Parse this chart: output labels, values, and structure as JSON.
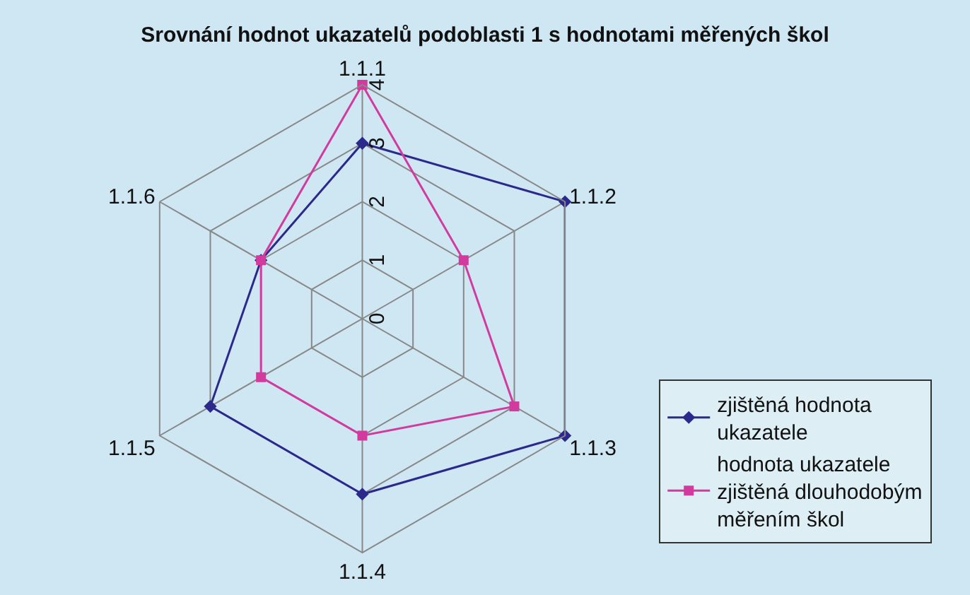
{
  "chart_data": {
    "type": "radar",
    "title": "Srovnání hodnot ukazatelů podoblasti 1 s hodnotami měřených škol",
    "categories": [
      "1.1.1",
      "1.1.2",
      "1.1.3",
      "1.1.4",
      "1.1.5",
      "1.1.6"
    ],
    "series": [
      {
        "name": "zjištěná hodnota ukazatele",
        "color": "#2b2a8c",
        "values": [
          3,
          4,
          4,
          3,
          3,
          2
        ]
      },
      {
        "name": "hodnota ukazatele zjištěná dlouhodobým měřením škol",
        "color": "#d23a9e",
        "values": [
          4,
          2,
          3,
          2,
          2,
          2
        ]
      }
    ],
    "ylim": [
      0,
      4
    ],
    "yticks": [
      0,
      1,
      2,
      3,
      4
    ],
    "grid": true,
    "legend": "right",
    "marker": "diamond"
  }
}
